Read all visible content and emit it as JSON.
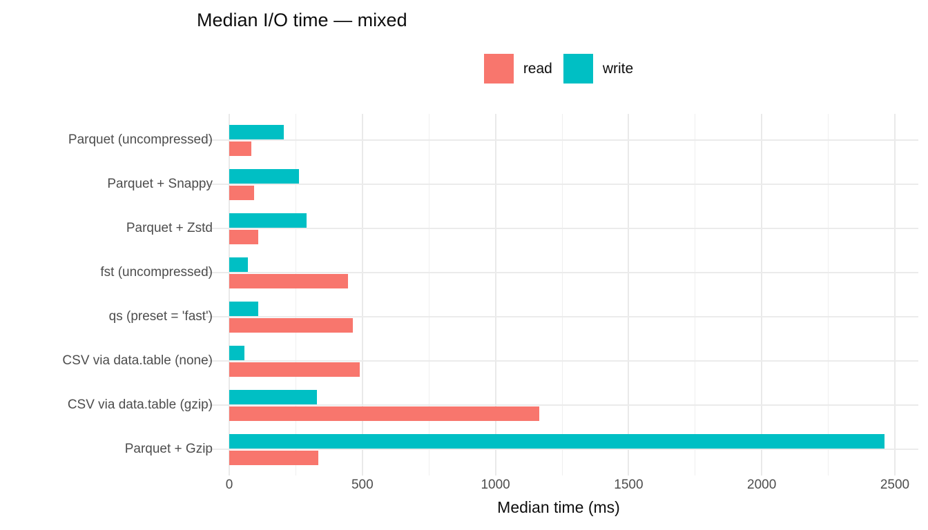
{
  "chart_data": {
    "type": "bar",
    "orientation": "horizontal",
    "title": "Median I/O time — mixed",
    "xlabel": "Median time (ms)",
    "ylabel": "",
    "categories": [
      "Parquet (uncompressed)",
      "Parquet + Snappy",
      "Parquet + Zstd",
      "fst (uncompressed)",
      "qs (preset = 'fast')",
      "CSV via data.table (none)",
      "CSV via data.table (gzip)",
      "Parquet + Gzip"
    ],
    "series": [
      {
        "name": "read",
        "color": "#F8766D",
        "values": [
          83,
          93,
          110,
          445,
          465,
          490,
          1165,
          335
        ]
      },
      {
        "name": "write",
        "color": "#00BFC4",
        "values": [
          204,
          262,
          291,
          70,
          108,
          58,
          330,
          2460
        ]
      }
    ],
    "x_ticks": [
      0,
      500,
      1000,
      1500,
      2000,
      2500
    ],
    "x_minor_ticks": [
      250,
      750,
      1250,
      1750,
      2250
    ],
    "xlim": [
      0,
      2500
    ],
    "legend_position": "top",
    "grid": true,
    "colors": {
      "background": "#FFFFFF",
      "grid_major": "#E9E9E9",
      "grid_minor": "#EFEFEF",
      "axis_text": "#4D4D4D",
      "title_text": "#0D0D0D"
    }
  }
}
